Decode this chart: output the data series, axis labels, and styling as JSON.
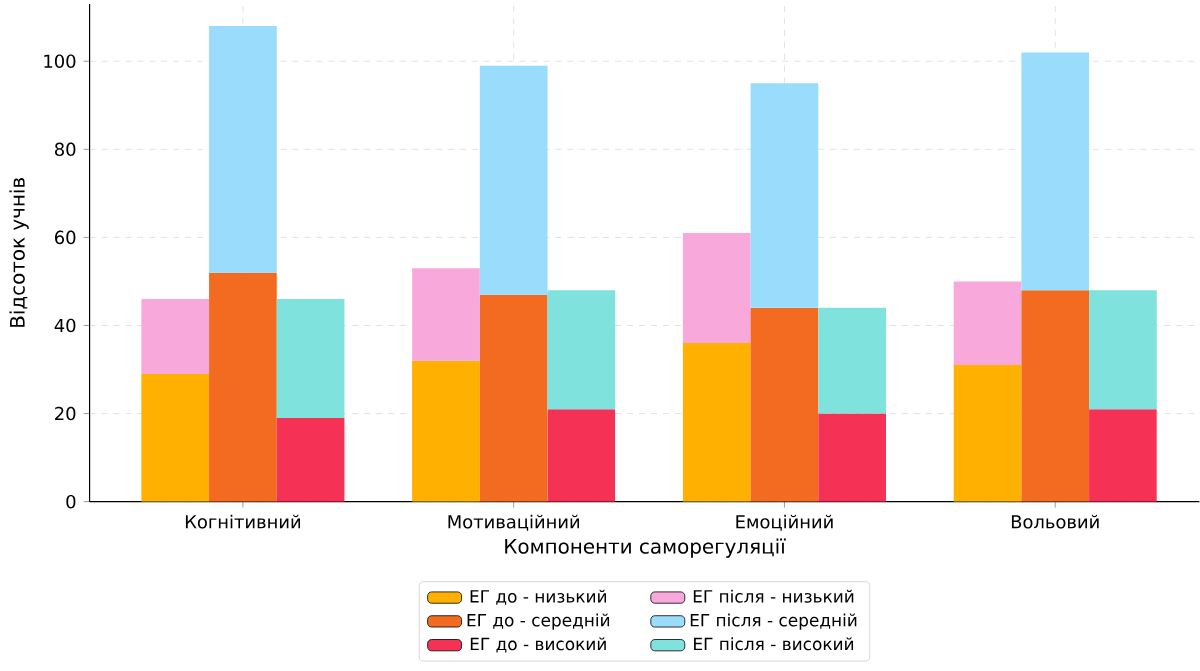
{
  "chart_data": {
    "type": "bar",
    "stacked": true,
    "xlabel": "Компоненти саморегуляції",
    "ylabel": "Відсоток учнів",
    "categories": [
      null,
      "Когнітивний",
      null,
      null,
      null,
      "Мотиваційний",
      null,
      null,
      null,
      "Емоційний",
      null,
      null,
      null,
      "Вольовий",
      null
    ],
    "series": [
      {
        "name": "ЕГ до - низький",
        "color": "#ffb000",
        "values": [
          29,
          null,
          null,
          null,
          32,
          null,
          null,
          null,
          36,
          null,
          null,
          null,
          31,
          null,
          null
        ]
      },
      {
        "name": "ЕГ після - низький",
        "color": "#f9a8dc",
        "values": [
          17,
          null,
          null,
          null,
          21,
          null,
          null,
          null,
          25,
          null,
          null,
          null,
          19,
          null,
          null
        ]
      },
      {
        "name": "ЕГ до - середній",
        "color": "#f26b21",
        "values": [
          null,
          52,
          null,
          null,
          null,
          47,
          null,
          null,
          null,
          44,
          null,
          null,
          null,
          48,
          null
        ]
      },
      {
        "name": "ЕГ після - середній",
        "color": "#99dcfb",
        "values": [
          null,
          56,
          null,
          null,
          null,
          52,
          null,
          null,
          null,
          51,
          null,
          null,
          null,
          54,
          null
        ]
      },
      {
        "name": "ЕГ до - високий",
        "color": "#f53255",
        "values": [
          null,
          null,
          19,
          null,
          null,
          null,
          21,
          null,
          null,
          null,
          20,
          null,
          null,
          null,
          21
        ]
      },
      {
        "name": "ЕГ після - високий",
        "color": "#7fe2dc",
        "values": [
          null,
          null,
          27,
          null,
          null,
          null,
          27,
          null,
          null,
          null,
          24,
          null,
          null,
          null,
          27
        ]
      }
    ],
    "ylim": [
      0,
      113
    ],
    "yticks": [
      0,
      20,
      40,
      60,
      80,
      100
    ],
    "grid": true,
    "legend": "bottom"
  }
}
